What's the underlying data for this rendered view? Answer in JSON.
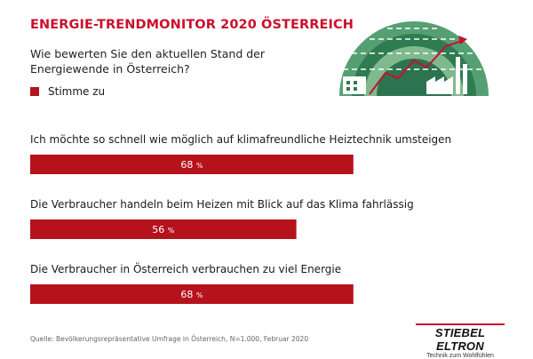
{
  "header": {
    "title": "ENERGIE-TRENDMONITOR 2020 ÖSTERREICH",
    "question": "Wie bewerten Sie den aktuellen Stand der Energiewende in Österreich?"
  },
  "legend": {
    "label": "Stimme zu",
    "color": "#b5121b"
  },
  "chart_data": {
    "type": "bar",
    "orientation": "horizontal",
    "categories": [
      "Ich möchte so schnell wie möglich auf klimafreundliche Heiztechnik umsteigen",
      "Die Verbraucher handeln beim Heizen mit Blick auf das Klima fahrlässig",
      "Die Verbraucher in Österreich verbrauchen zu viel Energie"
    ],
    "series": [
      {
        "name": "Stimme zu",
        "values": [
          68,
          56,
          68
        ]
      }
    ],
    "value_labels": [
      "68",
      "56",
      "68"
    ],
    "unit": "%",
    "xlim": [
      0,
      100
    ],
    "title": "",
    "xlabel": "",
    "ylabel": ""
  },
  "footer": {
    "source": "Quelle: Bevölkerungsrepräsentative Umfrage in Österreich, N=1.000, Februar 2020",
    "logo_name": "STIEBEL ELTRON",
    "logo_tagline": "Technik zum Wohlfühlen"
  }
}
